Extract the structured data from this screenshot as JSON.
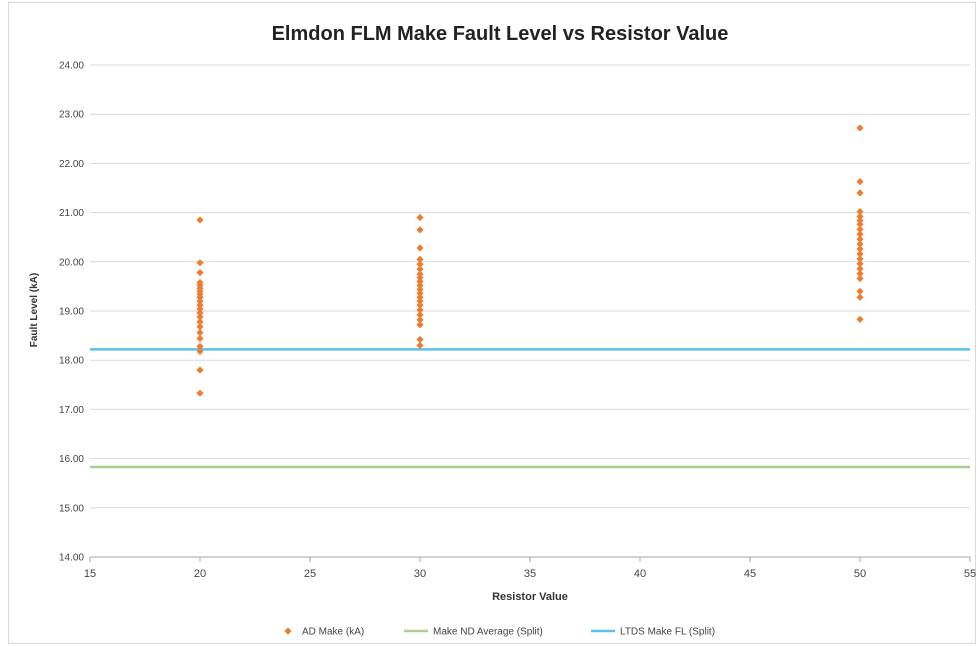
{
  "chart_data": {
    "type": "scatter",
    "title": "Elmdon FLM Make Fault Level vs Resistor Value",
    "xlabel": "Resistor Value",
    "ylabel": "Fault Level (kA)",
    "xlim": [
      15,
      55
    ],
    "ylim": [
      14,
      24
    ],
    "x_ticks": [
      15,
      20,
      25,
      30,
      35,
      40,
      45,
      50,
      55
    ],
    "y_ticks": [
      14.0,
      15.0,
      16.0,
      17.0,
      18.0,
      19.0,
      20.0,
      21.0,
      22.0,
      23.0,
      24.0
    ],
    "grid": "horizontal",
    "legend_position": "bottom",
    "series": [
      {
        "name": "AD Make (kA)",
        "kind": "points",
        "color": "#ED7D31",
        "points": [
          [
            20,
            20.85
          ],
          [
            20,
            19.98
          ],
          [
            20,
            19.78
          ],
          [
            20,
            19.58
          ],
          [
            20,
            19.52
          ],
          [
            20,
            19.46
          ],
          [
            20,
            19.4
          ],
          [
            20,
            19.34
          ],
          [
            20,
            19.28
          ],
          [
            20,
            19.2
          ],
          [
            20,
            19.12
          ],
          [
            20,
            19.04
          ],
          [
            20,
            18.96
          ],
          [
            20,
            18.88
          ],
          [
            20,
            18.78
          ],
          [
            20,
            18.68
          ],
          [
            20,
            18.56
          ],
          [
            20,
            18.44
          ],
          [
            20,
            18.28
          ],
          [
            20,
            18.18
          ],
          [
            20,
            17.8
          ],
          [
            20,
            17.33
          ],
          [
            30,
            20.9
          ],
          [
            30,
            20.65
          ],
          [
            30,
            20.28
          ],
          [
            30,
            20.05
          ],
          [
            30,
            19.95
          ],
          [
            30,
            19.85
          ],
          [
            30,
            19.75
          ],
          [
            30,
            19.68
          ],
          [
            30,
            19.6
          ],
          [
            30,
            19.52
          ],
          [
            30,
            19.44
          ],
          [
            30,
            19.36
          ],
          [
            30,
            19.28
          ],
          [
            30,
            19.2
          ],
          [
            30,
            19.12
          ],
          [
            30,
            19.02
          ],
          [
            30,
            18.92
          ],
          [
            30,
            18.82
          ],
          [
            30,
            18.72
          ],
          [
            30,
            18.42
          ],
          [
            30,
            18.3
          ],
          [
            50,
            22.72
          ],
          [
            50,
            21.63
          ],
          [
            50,
            21.4
          ],
          [
            50,
            21.02
          ],
          [
            50,
            20.92
          ],
          [
            50,
            20.84
          ],
          [
            50,
            20.76
          ],
          [
            50,
            20.66
          ],
          [
            50,
            20.56
          ],
          [
            50,
            20.46
          ],
          [
            50,
            20.36
          ],
          [
            50,
            20.26
          ],
          [
            50,
            20.16
          ],
          [
            50,
            20.06
          ],
          [
            50,
            19.96
          ],
          [
            50,
            19.86
          ],
          [
            50,
            19.76
          ],
          [
            50,
            19.66
          ],
          [
            50,
            19.4
          ],
          [
            50,
            19.28
          ],
          [
            50,
            18.83
          ]
        ]
      },
      {
        "name": "Make ND Average (Split)",
        "kind": "hline",
        "color": "#A9D18E",
        "y": 15.83
      },
      {
        "name": "LTDS Make FL (Split)",
        "kind": "hline",
        "color": "#5BC0EB",
        "y": 18.22
      }
    ]
  }
}
